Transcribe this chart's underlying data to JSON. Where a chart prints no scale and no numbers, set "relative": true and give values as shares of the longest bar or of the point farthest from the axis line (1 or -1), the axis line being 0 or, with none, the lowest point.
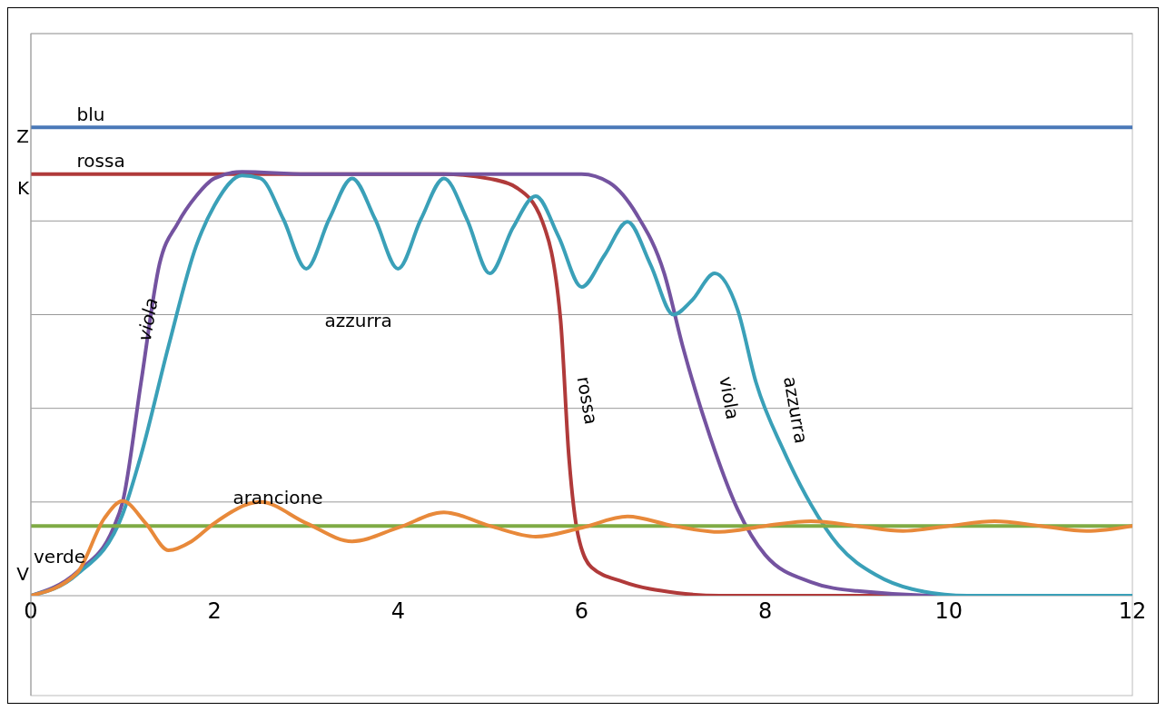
{
  "chart_data": {
    "type": "line",
    "relative": true,
    "xlim": [
      0,
      12
    ],
    "xticks": [
      0,
      2,
      4,
      6,
      8,
      10,
      12
    ],
    "grid": "y",
    "legend": false,
    "marker": "none",
    "series": [
      {
        "name": "blu",
        "color": "#4a78b8",
        "x": [
          0,
          1,
          12
        ],
        "values": [
          1,
          1,
          1
        ]
      },
      {
        "name": "rossa",
        "color": "#b03a3a",
        "x": [
          0,
          1,
          2,
          3,
          4,
          4.5,
          5,
          5.3,
          5.57,
          5.77,
          5.86,
          5.96,
          6.11,
          6.45,
          7.04,
          7.5,
          9,
          12
        ],
        "values": [
          0.9,
          0.9,
          0.9,
          0.9,
          0.9,
          0.9,
          0.89,
          0.87,
          0.8,
          0.59,
          0.3,
          0.13,
          0.06,
          0.03,
          0.006,
          0,
          0,
          0
        ]
      },
      {
        "name": "viola",
        "color": "#7453a0",
        "x": [
          0,
          0.5,
          0.9,
          1,
          1.2,
          1.4,
          1.6,
          1.8,
          2,
          2.3,
          3,
          4,
          5,
          6,
          6.3,
          6.6,
          6.9,
          7.1,
          7.4,
          7.7,
          8,
          8.5,
          9,
          10,
          12
        ],
        "values": [
          0,
          0.05,
          0.145,
          0.2,
          0.455,
          0.707,
          0.795,
          0.853,
          0.891,
          0.905,
          0.9,
          0.9,
          0.9,
          0.9,
          0.882,
          0.814,
          0.688,
          0.533,
          0.339,
          0.184,
          0.087,
          0.029,
          0.01,
          0,
          0
        ]
      },
      {
        "name": "azzurra",
        "color": "#3aa0b8",
        "x": [
          0,
          0.5,
          1,
          1.2,
          1.5,
          1.8,
          2,
          2.3,
          2.5,
          2.75,
          3,
          3.25,
          3.5,
          3.75,
          4,
          4.25,
          4.5,
          4.75,
          5,
          5.25,
          5.5,
          5.75,
          6,
          6.25,
          6.5,
          6.75,
          7,
          7.2,
          7.45,
          7.7,
          7.9,
          8.2,
          8.5,
          8.8,
          9.2,
          9.6,
          10.2,
          12
        ],
        "values": [
          0,
          0.045,
          0.174,
          0.3,
          0.533,
          0.746,
          0.833,
          0.897,
          0.891,
          0.804,
          0.698,
          0.804,
          0.891,
          0.804,
          0.698,
          0.804,
          0.891,
          0.804,
          0.688,
          0.785,
          0.853,
          0.766,
          0.659,
          0.727,
          0.798,
          0.707,
          0.6,
          0.63,
          0.688,
          0.61,
          0.455,
          0.31,
          0.194,
          0.107,
          0.045,
          0.014,
          0,
          0
        ]
      },
      {
        "name": "verde",
        "color": "#7fab45",
        "x": [
          0,
          12
        ],
        "values": [
          0.149,
          0.149
        ]
      },
      {
        "name": "arancione",
        "color": "#e8893a",
        "x": [
          0,
          0.5,
          0.8,
          1,
          1.25,
          1.5,
          1.75,
          2,
          2.5,
          3,
          3.5,
          4,
          4.5,
          5,
          5.5,
          6,
          6.5,
          7,
          7.5,
          8,
          8.5,
          9,
          9.5,
          10,
          10.5,
          11,
          11.5,
          12
        ],
        "values": [
          0,
          0.048,
          0.165,
          0.202,
          0.155,
          0.097,
          0.116,
          0.155,
          0.2,
          0.155,
          0.116,
          0.145,
          0.178,
          0.149,
          0.126,
          0.145,
          0.169,
          0.149,
          0.136,
          0.149,
          0.159,
          0.149,
          0.138,
          0.149,
          0.159,
          0.149,
          0.138,
          0.149
        ]
      }
    ],
    "annotations": [
      "Z",
      "K",
      "V",
      "rossa",
      "viola",
      "azzurra"
    ]
  }
}
